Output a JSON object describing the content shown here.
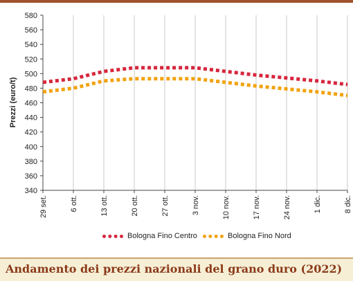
{
  "chart_data": {
    "type": "line",
    "title": "Andamento dei prezzi nazionali del grano duro (2022)",
    "ylabel": "Prezzi (euro/t)",
    "xlabel": "",
    "ylim": [
      340,
      580
    ],
    "yticks": [
      340,
      360,
      380,
      400,
      420,
      440,
      460,
      480,
      500,
      520,
      540,
      560,
      580
    ],
    "categories": [
      "29 set.",
      "6 ott.",
      "13 ott.",
      "20 ott.",
      "27 ott.",
      "3 nov.",
      "10 nov.",
      "17 nov.",
      "24 nov.",
      "1 dic.",
      "8 dic."
    ],
    "grid": "vertical",
    "legend_position": "bottom",
    "series": [
      {
        "name": "Bologna Fino Centro",
        "color": "#d7263d",
        "values": [
          488,
          493,
          503,
          508,
          508,
          508,
          503,
          498,
          494,
          490,
          485
        ]
      },
      {
        "name": "Bologna Fino Nord",
        "color": "#f2a20c",
        "values": [
          475,
          480,
          490,
          493,
          493,
          493,
          488,
          483,
          479,
          475,
          470
        ]
      }
    ]
  }
}
